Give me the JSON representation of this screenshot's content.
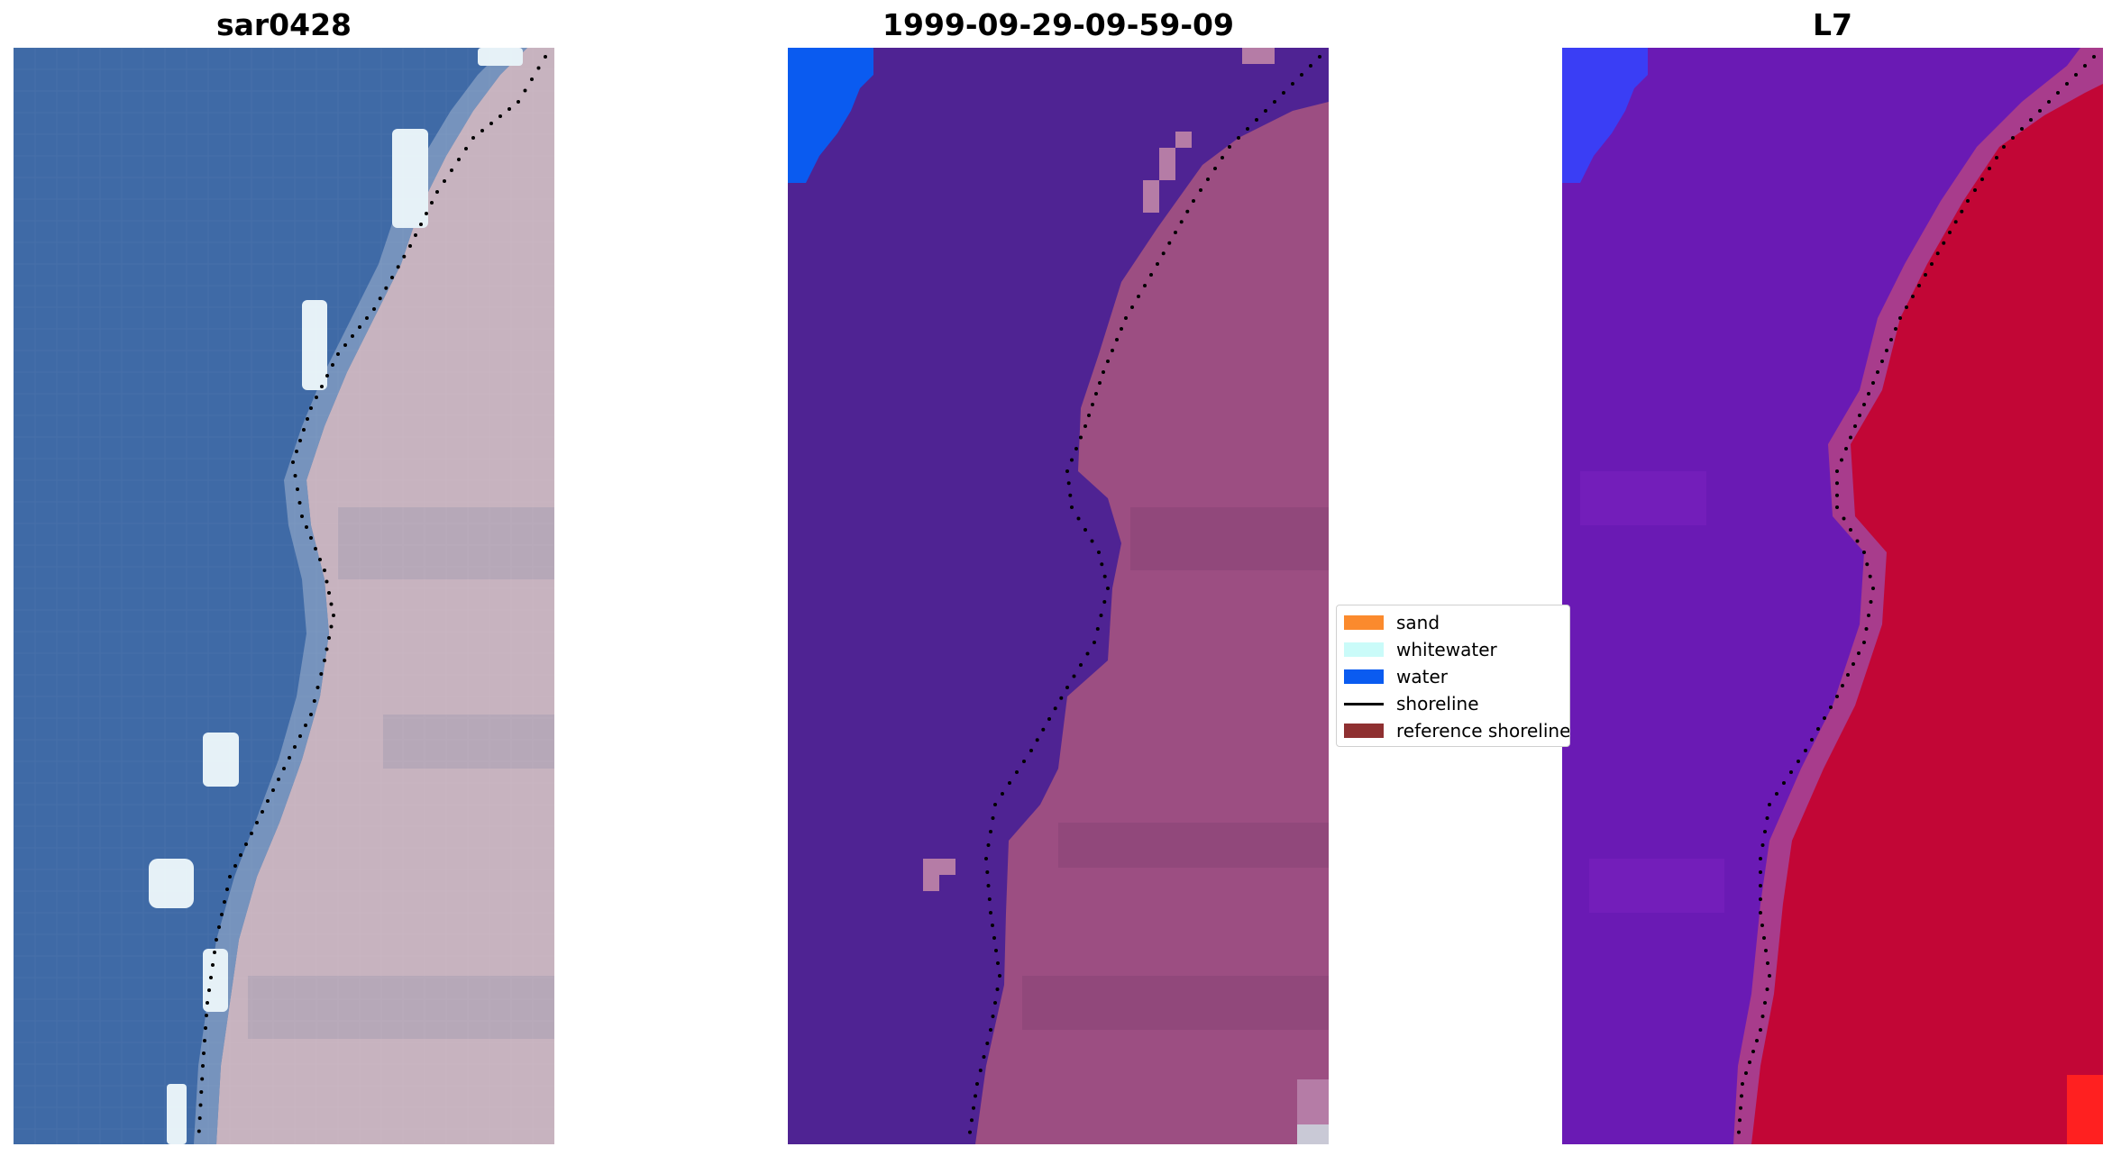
{
  "panels": [
    {
      "title": "sar0428"
    },
    {
      "title": "1999-09-29-09-59-09"
    },
    {
      "title": "L7"
    }
  ],
  "legend": {
    "items": [
      {
        "label": "sand",
        "color": "#fb8a2d",
        "kind": "patch"
      },
      {
        "label": "whitewater",
        "color": "#cafbf9",
        "kind": "patch"
      },
      {
        "label": "water",
        "color": "#0a5bf0",
        "kind": "patch"
      },
      {
        "label": "shoreline",
        "color": "#000000",
        "kind": "line"
      },
      {
        "label": "reference shoreline",
        "color": "#8f3031",
        "kind": "patch"
      }
    ]
  },
  "colors": {
    "rgb_sea": "#3f6aa6",
    "rgb_land": "#c7b3bf",
    "rgb_whitewater": "#e6f1f7",
    "classified_water_overlay": "#4f2393",
    "classified_land": "#9c4e82",
    "classified_sand_patch": "#b57ca6",
    "classified_water_class": "#0a5bf0",
    "mndwi_low": "#6a1ab4",
    "mndwi_high": "#c20636",
    "mndwi_water": "#3a3ef5",
    "mndwi_max": "#ff2020",
    "shoreline_dots": "#000000"
  }
}
